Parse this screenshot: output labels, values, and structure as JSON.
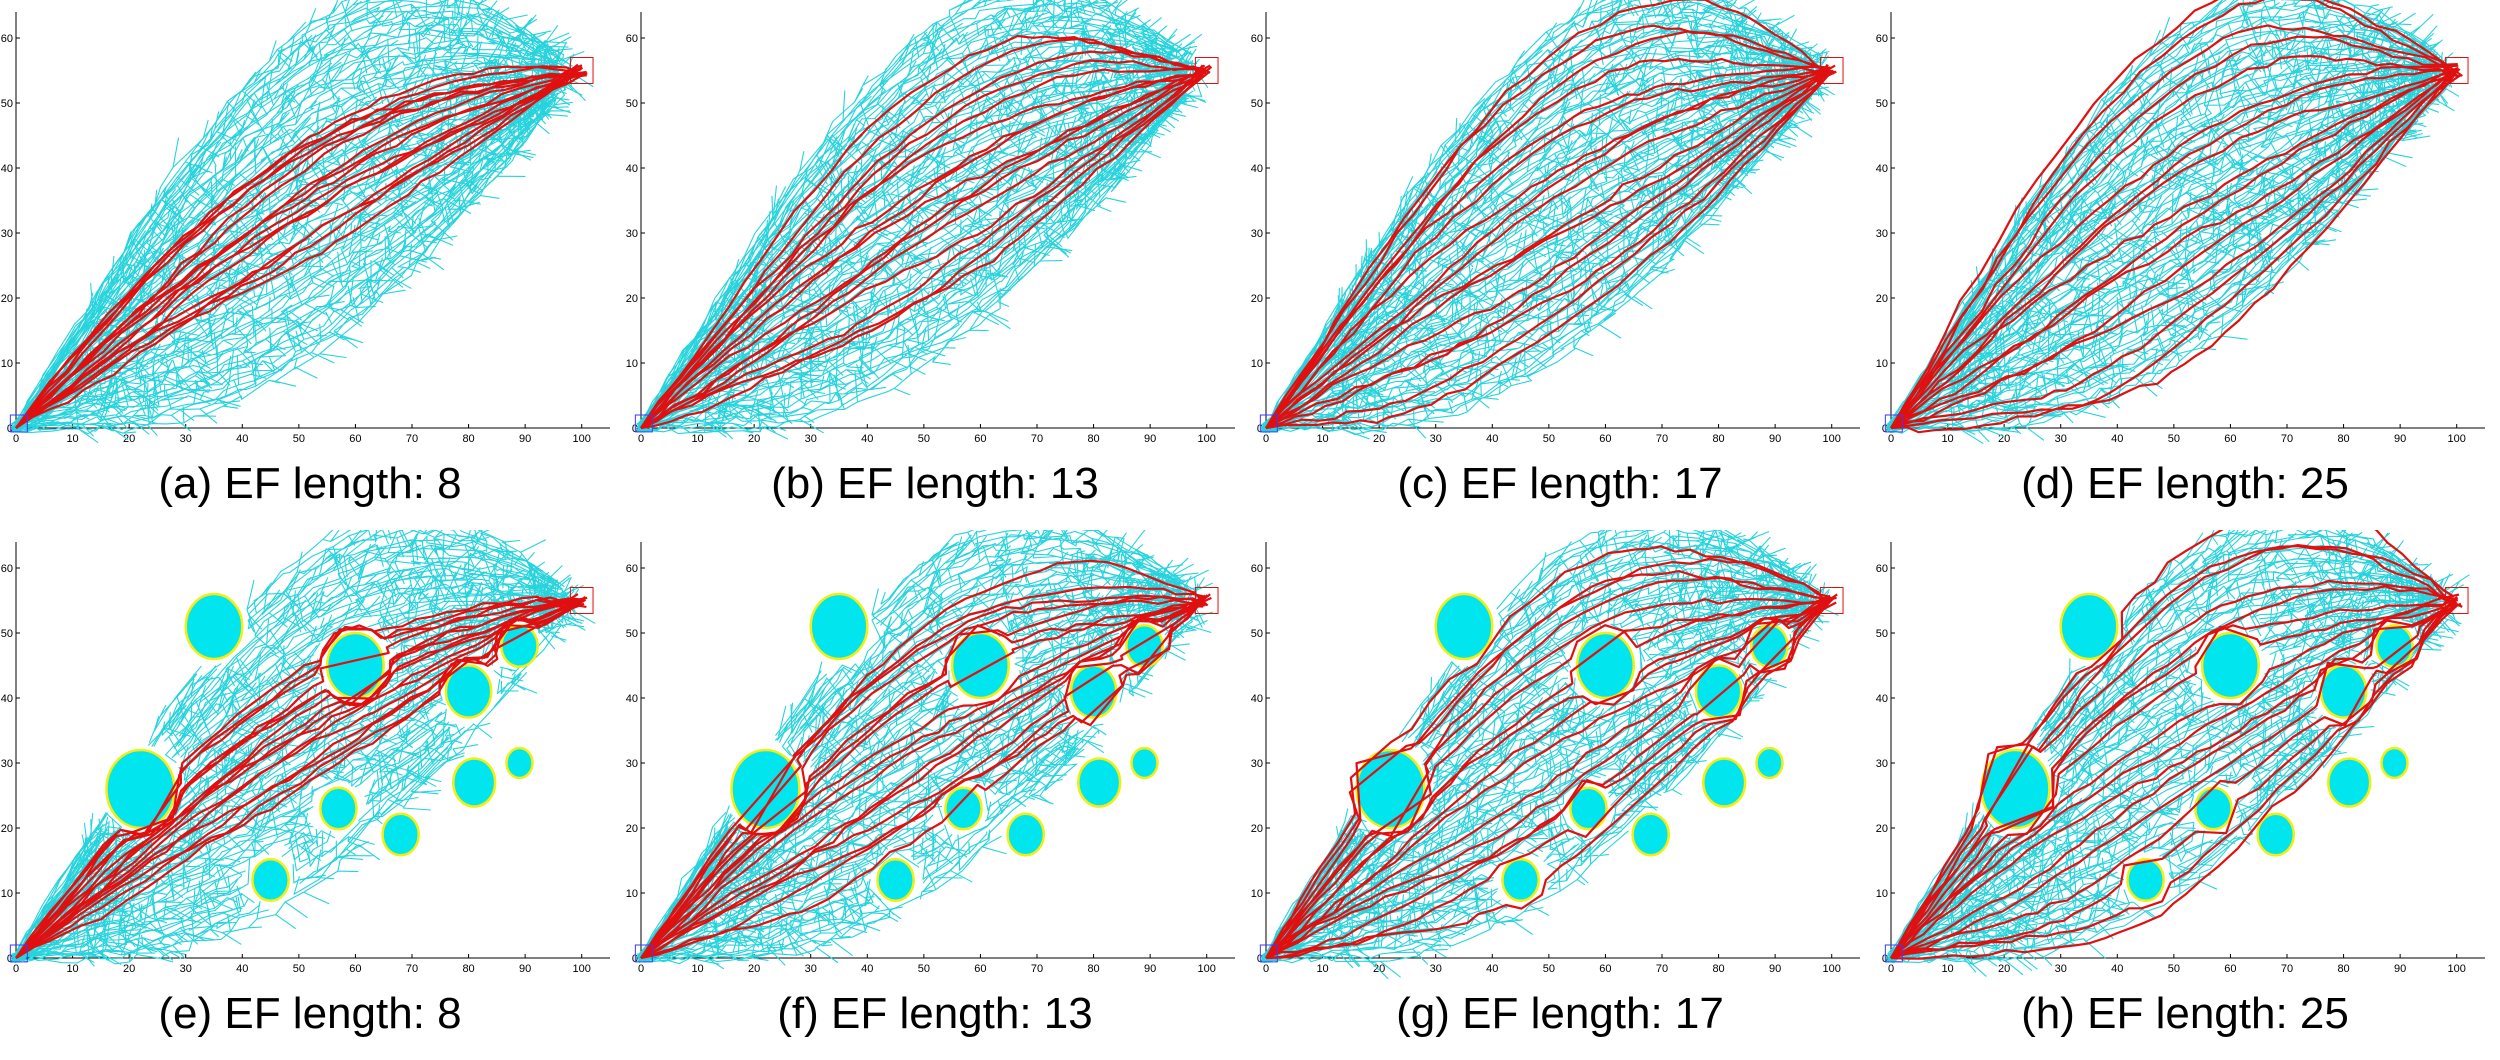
{
  "chart_data": [
    {
      "type": "scatter",
      "caption": "(a) EF length: 8",
      "xlim": [
        0,
        105
      ],
      "ylim": [
        0,
        64
      ],
      "xticks": [
        0,
        10,
        20,
        30,
        40,
        50,
        60,
        70,
        80,
        90,
        100
      ],
      "yticks": [
        0,
        10,
        20,
        30,
        40,
        50,
        60
      ],
      "start": [
        0,
        0
      ],
      "goal": [
        100,
        55
      ],
      "obstacles": [],
      "seed": 11
    },
    {
      "type": "scatter",
      "caption": "(b) EF length: 13",
      "xlim": [
        0,
        105
      ],
      "ylim": [
        0,
        64
      ],
      "xticks": [
        0,
        10,
        20,
        30,
        40,
        50,
        60,
        70,
        80,
        90,
        100
      ],
      "yticks": [
        0,
        10,
        20,
        30,
        40,
        50,
        60
      ],
      "start": [
        0,
        0
      ],
      "goal": [
        100,
        55
      ],
      "obstacles": [],
      "seed": 23
    },
    {
      "type": "scatter",
      "caption": "(c) EF length: 17",
      "xlim": [
        0,
        105
      ],
      "ylim": [
        0,
        64
      ],
      "xticks": [
        0,
        10,
        20,
        30,
        40,
        50,
        60,
        70,
        80,
        90,
        100
      ],
      "yticks": [
        0,
        10,
        20,
        30,
        40,
        50,
        60
      ],
      "start": [
        0,
        0
      ],
      "goal": [
        100,
        55
      ],
      "obstacles": [],
      "seed": 37
    },
    {
      "type": "scatter",
      "caption": "(d) EF length: 25",
      "xlim": [
        0,
        105
      ],
      "ylim": [
        0,
        64
      ],
      "xticks": [
        0,
        10,
        20,
        30,
        40,
        50,
        60,
        70,
        80,
        90,
        100
      ],
      "yticks": [
        0,
        10,
        20,
        30,
        40,
        50,
        60
      ],
      "start": [
        0,
        0
      ],
      "goal": [
        100,
        55
      ],
      "obstacles": [],
      "seed": 41
    },
    {
      "type": "scatter",
      "caption": "(e) EF length: 8",
      "xlim": [
        0,
        105
      ],
      "ylim": [
        0,
        64
      ],
      "xticks": [
        0,
        10,
        20,
        30,
        40,
        50,
        60,
        70,
        80,
        90,
        100
      ],
      "yticks": [
        0,
        10,
        20,
        30,
        40,
        50,
        60
      ],
      "start": [
        0,
        0
      ],
      "goal": [
        100,
        55
      ],
      "obstacles": [
        [
          22,
          26,
          6
        ],
        [
          35,
          51,
          5
        ],
        [
          60,
          45,
          5
        ],
        [
          80,
          41,
          4
        ],
        [
          89,
          48,
          3.2
        ],
        [
          81,
          27,
          3.7
        ],
        [
          57,
          23,
          3.2
        ],
        [
          68,
          19,
          3.2
        ],
        [
          45,
          12,
          3.2
        ],
        [
          89,
          30,
          2.3
        ]
      ],
      "seed": 53
    },
    {
      "type": "scatter",
      "caption": "(f) EF length: 13",
      "xlim": [
        0,
        105
      ],
      "ylim": [
        0,
        64
      ],
      "xticks": [
        0,
        10,
        20,
        30,
        40,
        50,
        60,
        70,
        80,
        90,
        100
      ],
      "yticks": [
        0,
        10,
        20,
        30,
        40,
        50,
        60
      ],
      "start": [
        0,
        0
      ],
      "goal": [
        100,
        55
      ],
      "obstacles": [
        [
          22,
          26,
          6
        ],
        [
          35,
          51,
          5
        ],
        [
          60,
          45,
          5
        ],
        [
          80,
          41,
          4
        ],
        [
          89,
          48,
          3.2
        ],
        [
          81,
          27,
          3.7
        ],
        [
          57,
          23,
          3.2
        ],
        [
          68,
          19,
          3.2
        ],
        [
          45,
          12,
          3.2
        ],
        [
          89,
          30,
          2.3
        ]
      ],
      "seed": 67
    },
    {
      "type": "scatter",
      "caption": "(g) EF length: 17",
      "xlim": [
        0,
        105
      ],
      "ylim": [
        0,
        64
      ],
      "xticks": [
        0,
        10,
        20,
        30,
        40,
        50,
        60,
        70,
        80,
        90,
        100
      ],
      "yticks": [
        0,
        10,
        20,
        30,
        40,
        50,
        60
      ],
      "start": [
        0,
        0
      ],
      "goal": [
        100,
        55
      ],
      "obstacles": [
        [
          22,
          26,
          6
        ],
        [
          35,
          51,
          5
        ],
        [
          60,
          45,
          5
        ],
        [
          80,
          41,
          4
        ],
        [
          89,
          48,
          3.2
        ],
        [
          81,
          27,
          3.7
        ],
        [
          57,
          23,
          3.2
        ],
        [
          68,
          19,
          3.2
        ],
        [
          45,
          12,
          3.2
        ],
        [
          89,
          30,
          2.3
        ]
      ],
      "seed": 79
    },
    {
      "type": "scatter",
      "caption": "(h) EF length: 25",
      "xlim": [
        0,
        105
      ],
      "ylim": [
        0,
        64
      ],
      "xticks": [
        0,
        10,
        20,
        30,
        40,
        50,
        60,
        70,
        80,
        90,
        100
      ],
      "yticks": [
        0,
        10,
        20,
        30,
        40,
        50,
        60
      ],
      "start": [
        0,
        0
      ],
      "goal": [
        100,
        55
      ],
      "obstacles": [
        [
          22,
          26,
          6
        ],
        [
          35,
          51,
          5
        ],
        [
          60,
          45,
          5
        ],
        [
          80,
          41,
          4
        ],
        [
          89,
          48,
          3.2
        ],
        [
          81,
          27,
          3.7
        ],
        [
          57,
          23,
          3.2
        ],
        [
          68,
          19,
          3.2
        ],
        [
          45,
          12,
          3.2
        ],
        [
          89,
          30,
          2.3
        ]
      ],
      "seed": 97
    }
  ],
  "colors": {
    "tree": "#27d3dc",
    "path": "#e01010",
    "obstacle_fill": "#00e5ee",
    "obstacle_edge": "#f2ee10",
    "goal_box": "#e01010",
    "start_box": "#3a3aff"
  }
}
